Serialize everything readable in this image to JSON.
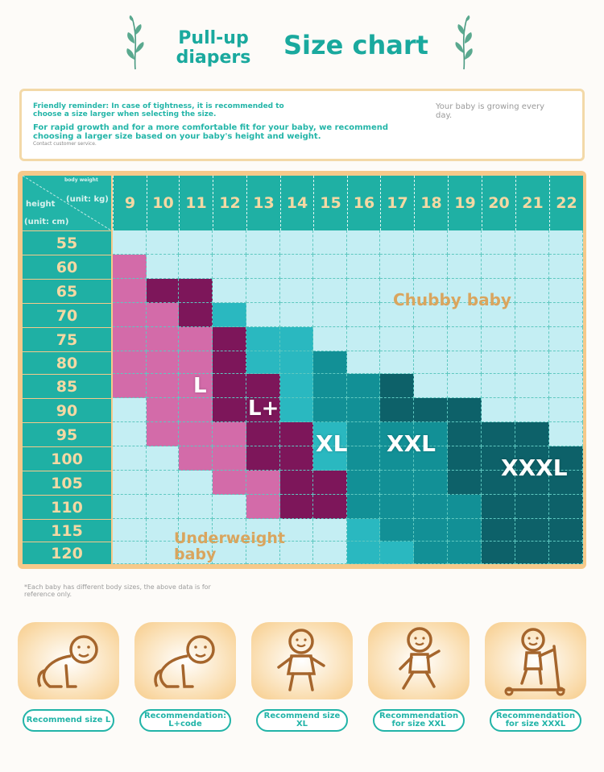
{
  "header": {
    "subtitle": "Pull-up diapers",
    "title": "Size chart"
  },
  "notice": {
    "reminder": "Friendly reminder: In case of tightness, it is recommended to choose a size larger when selecting the size.",
    "growth_advice": "For rapid growth and for a more comfortable fit for your baby, we recommend choosing a larger size based on your baby's height and weight.",
    "contact": "Contact customer service.",
    "growing": "Your baby is growing every day."
  },
  "table": {
    "corner": {
      "weight_label": "body weight",
      "weight_unit": "(unit: kg)",
      "height_label": "height",
      "height_unit": "(unit: cm)"
    },
    "weights": [
      "9",
      "10",
      "11",
      "12",
      "13",
      "14",
      "15",
      "16",
      "17",
      "18",
      "19",
      "20",
      "21",
      "22"
    ],
    "heights": [
      "55",
      "60",
      "65",
      "70",
      "75",
      "80",
      "85",
      "90",
      "95",
      "100",
      "105",
      "110",
      "115",
      "120"
    ],
    "size_labels": {
      "L": "L",
      "Lplus": "L+",
      "XL": "XL",
      "XXL": "XXL",
      "XXXL": "XXXL"
    },
    "region_labels": {
      "chubby": "Chubby baby",
      "underweight": "Underweight baby"
    },
    "colors": {
      "L": "#d36ba9",
      "Lplus": "#7d165a",
      "XL": "#2ab8c0",
      "XXL": "#129096",
      "XXXL": "#0d6169",
      "empty": "#c4eef3",
      "header": "#1fb0a4",
      "frame": "#f6c98a"
    }
  },
  "footnote": "*Each baby has different body sizes, the above data is for reference only.",
  "recommendations": [
    {
      "label": "Recommend size L",
      "icon": "crawling-baby-icon"
    },
    {
      "label": "Recommendation: L+code",
      "icon": "crawling-baby-icon"
    },
    {
      "label": "Recommend size XL",
      "icon": "standing-baby-icon"
    },
    {
      "label": "Recommendation for size XXL",
      "icon": "walking-baby-icon"
    },
    {
      "label": "Recommendation for size XXXL",
      "icon": "scooter-baby-icon"
    }
  ]
}
